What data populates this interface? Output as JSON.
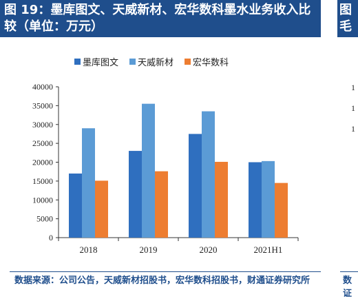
{
  "title": "图 19：墨库图文、天威新材、宏华数科墨水业务收入比较（单位：万元）",
  "neighbor_title_fragment": [
    "图",
    "毛"
  ],
  "neighbor_axis_fragment": [
    "1",
    "1",
    "1"
  ],
  "source": "数据来源：公司公告，天威新材招股书，宏华数科招股书，财通证券研究所",
  "neighbor_source_fragment": [
    "数",
    "证"
  ],
  "colors": {
    "title_bg": "#1f4e8c",
    "series_1": "#2f6fbf",
    "series_2": "#5b9bd5",
    "series_3": "#ed7d31"
  },
  "chart_data": {
    "type": "bar",
    "title": "",
    "xlabel": "",
    "ylabel": "",
    "categories": [
      "2018",
      "2019",
      "2020",
      "2021H1"
    ],
    "series": [
      {
        "name": "墨库图文",
        "values": [
          17000,
          23000,
          27500,
          20000
        ]
      },
      {
        "name": "天威新材",
        "values": [
          29000,
          35500,
          33500,
          20300
        ]
      },
      {
        "name": "宏华数科",
        "values": [
          15100,
          17600,
          20100,
          14500
        ]
      }
    ],
    "ylim": [
      0,
      40000
    ],
    "yticks": [
      0,
      5000,
      10000,
      15000,
      20000,
      25000,
      30000,
      35000,
      40000
    ],
    "legend_position": "top",
    "grid": false
  }
}
